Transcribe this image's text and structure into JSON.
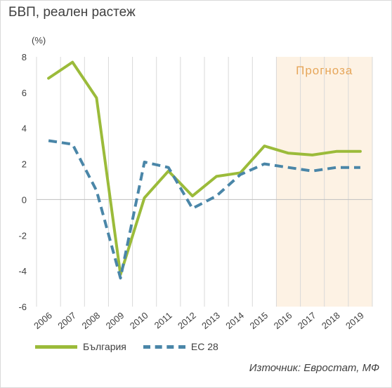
{
  "title": "БВП, реален растеж",
  "unit_label": "(%)",
  "source": "Източник: Евростат, МФ",
  "forecast_label": "Прогноза",
  "colors": {
    "bulgaria": "#9bbb3a",
    "eu28": "#4a86a8",
    "forecast_band": "#fdf2e4",
    "forecast_text": "#e6a65a",
    "grid": "#d9d9d9"
  },
  "chart_data": {
    "type": "line",
    "title": "БВП, реален растеж",
    "ylabel": "(%)",
    "xlabel": "",
    "x": [
      "2006",
      "2007",
      "2008",
      "2009",
      "2010",
      "2011",
      "2012",
      "2013",
      "2014",
      "2015",
      "2016",
      "2017",
      "2018",
      "2019"
    ],
    "ylim": [
      -6,
      8
    ],
    "yticks": [
      -6,
      -4,
      -2,
      0,
      2,
      4,
      6,
      8
    ],
    "grid": "vertical",
    "forecast_from": "2016",
    "forecast_to": "2019",
    "legend_position": "bottom-left",
    "series": [
      {
        "name": "България",
        "style": "solid",
        "values": [
          6.8,
          7.7,
          5.7,
          -4.2,
          0.1,
          1.6,
          0.2,
          1.3,
          1.5,
          3.0,
          2.6,
          2.5,
          2.7,
          2.7
        ]
      },
      {
        "name": "ЕС 28",
        "style": "dashed",
        "values": [
          3.3,
          3.1,
          0.5,
          -4.4,
          2.1,
          1.8,
          -0.5,
          0.2,
          1.4,
          2.0,
          1.8,
          1.6,
          1.8,
          1.8
        ]
      }
    ]
  }
}
